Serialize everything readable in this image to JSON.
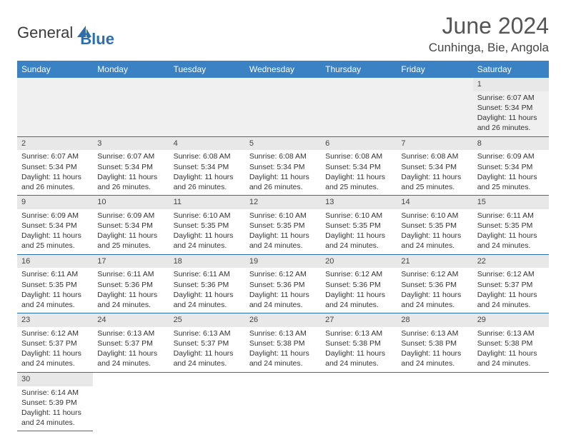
{
  "logo": {
    "text1": "General",
    "text2": "Blue"
  },
  "title": "June 2024",
  "location": "Cunhinga, Bie, Angola",
  "colors": {
    "header_bg": "#3b82c4",
    "border": "#2b6fb0",
    "daynum_bg": "#e8e8e8"
  },
  "weekdays": [
    "Sunday",
    "Monday",
    "Tuesday",
    "Wednesday",
    "Thursday",
    "Friday",
    "Saturday"
  ],
  "cells": [
    [
      null,
      null,
      null,
      null,
      null,
      null,
      {
        "day": "1",
        "sunrise": "Sunrise: 6:07 AM",
        "sunset": "Sunset: 5:34 PM",
        "daylight1": "Daylight: 11 hours",
        "daylight2": "and 26 minutes."
      }
    ],
    [
      {
        "day": "2",
        "sunrise": "Sunrise: 6:07 AM",
        "sunset": "Sunset: 5:34 PM",
        "daylight1": "Daylight: 11 hours",
        "daylight2": "and 26 minutes."
      },
      {
        "day": "3",
        "sunrise": "Sunrise: 6:07 AM",
        "sunset": "Sunset: 5:34 PM",
        "daylight1": "Daylight: 11 hours",
        "daylight2": "and 26 minutes."
      },
      {
        "day": "4",
        "sunrise": "Sunrise: 6:08 AM",
        "sunset": "Sunset: 5:34 PM",
        "daylight1": "Daylight: 11 hours",
        "daylight2": "and 26 minutes."
      },
      {
        "day": "5",
        "sunrise": "Sunrise: 6:08 AM",
        "sunset": "Sunset: 5:34 PM",
        "daylight1": "Daylight: 11 hours",
        "daylight2": "and 26 minutes."
      },
      {
        "day": "6",
        "sunrise": "Sunrise: 6:08 AM",
        "sunset": "Sunset: 5:34 PM",
        "daylight1": "Daylight: 11 hours",
        "daylight2": "and 25 minutes."
      },
      {
        "day": "7",
        "sunrise": "Sunrise: 6:08 AM",
        "sunset": "Sunset: 5:34 PM",
        "daylight1": "Daylight: 11 hours",
        "daylight2": "and 25 minutes."
      },
      {
        "day": "8",
        "sunrise": "Sunrise: 6:09 AM",
        "sunset": "Sunset: 5:34 PM",
        "daylight1": "Daylight: 11 hours",
        "daylight2": "and 25 minutes."
      }
    ],
    [
      {
        "day": "9",
        "sunrise": "Sunrise: 6:09 AM",
        "sunset": "Sunset: 5:34 PM",
        "daylight1": "Daylight: 11 hours",
        "daylight2": "and 25 minutes."
      },
      {
        "day": "10",
        "sunrise": "Sunrise: 6:09 AM",
        "sunset": "Sunset: 5:34 PM",
        "daylight1": "Daylight: 11 hours",
        "daylight2": "and 25 minutes."
      },
      {
        "day": "11",
        "sunrise": "Sunrise: 6:10 AM",
        "sunset": "Sunset: 5:35 PM",
        "daylight1": "Daylight: 11 hours",
        "daylight2": "and 24 minutes."
      },
      {
        "day": "12",
        "sunrise": "Sunrise: 6:10 AM",
        "sunset": "Sunset: 5:35 PM",
        "daylight1": "Daylight: 11 hours",
        "daylight2": "and 24 minutes."
      },
      {
        "day": "13",
        "sunrise": "Sunrise: 6:10 AM",
        "sunset": "Sunset: 5:35 PM",
        "daylight1": "Daylight: 11 hours",
        "daylight2": "and 24 minutes."
      },
      {
        "day": "14",
        "sunrise": "Sunrise: 6:10 AM",
        "sunset": "Sunset: 5:35 PM",
        "daylight1": "Daylight: 11 hours",
        "daylight2": "and 24 minutes."
      },
      {
        "day": "15",
        "sunrise": "Sunrise: 6:11 AM",
        "sunset": "Sunset: 5:35 PM",
        "daylight1": "Daylight: 11 hours",
        "daylight2": "and 24 minutes."
      }
    ],
    [
      {
        "day": "16",
        "sunrise": "Sunrise: 6:11 AM",
        "sunset": "Sunset: 5:35 PM",
        "daylight1": "Daylight: 11 hours",
        "daylight2": "and 24 minutes."
      },
      {
        "day": "17",
        "sunrise": "Sunrise: 6:11 AM",
        "sunset": "Sunset: 5:36 PM",
        "daylight1": "Daylight: 11 hours",
        "daylight2": "and 24 minutes."
      },
      {
        "day": "18",
        "sunrise": "Sunrise: 6:11 AM",
        "sunset": "Sunset: 5:36 PM",
        "daylight1": "Daylight: 11 hours",
        "daylight2": "and 24 minutes."
      },
      {
        "day": "19",
        "sunrise": "Sunrise: 6:12 AM",
        "sunset": "Sunset: 5:36 PM",
        "daylight1": "Daylight: 11 hours",
        "daylight2": "and 24 minutes."
      },
      {
        "day": "20",
        "sunrise": "Sunrise: 6:12 AM",
        "sunset": "Sunset: 5:36 PM",
        "daylight1": "Daylight: 11 hours",
        "daylight2": "and 24 minutes."
      },
      {
        "day": "21",
        "sunrise": "Sunrise: 6:12 AM",
        "sunset": "Sunset: 5:36 PM",
        "daylight1": "Daylight: 11 hours",
        "daylight2": "and 24 minutes."
      },
      {
        "day": "22",
        "sunrise": "Sunrise: 6:12 AM",
        "sunset": "Sunset: 5:37 PM",
        "daylight1": "Daylight: 11 hours",
        "daylight2": "and 24 minutes."
      }
    ],
    [
      {
        "day": "23",
        "sunrise": "Sunrise: 6:12 AM",
        "sunset": "Sunset: 5:37 PM",
        "daylight1": "Daylight: 11 hours",
        "daylight2": "and 24 minutes."
      },
      {
        "day": "24",
        "sunrise": "Sunrise: 6:13 AM",
        "sunset": "Sunset: 5:37 PM",
        "daylight1": "Daylight: 11 hours",
        "daylight2": "and 24 minutes."
      },
      {
        "day": "25",
        "sunrise": "Sunrise: 6:13 AM",
        "sunset": "Sunset: 5:37 PM",
        "daylight1": "Daylight: 11 hours",
        "daylight2": "and 24 minutes."
      },
      {
        "day": "26",
        "sunrise": "Sunrise: 6:13 AM",
        "sunset": "Sunset: 5:38 PM",
        "daylight1": "Daylight: 11 hours",
        "daylight2": "and 24 minutes."
      },
      {
        "day": "27",
        "sunrise": "Sunrise: 6:13 AM",
        "sunset": "Sunset: 5:38 PM",
        "daylight1": "Daylight: 11 hours",
        "daylight2": "and 24 minutes."
      },
      {
        "day": "28",
        "sunrise": "Sunrise: 6:13 AM",
        "sunset": "Sunset: 5:38 PM",
        "daylight1": "Daylight: 11 hours",
        "daylight2": "and 24 minutes."
      },
      {
        "day": "29",
        "sunrise": "Sunrise: 6:13 AM",
        "sunset": "Sunset: 5:38 PM",
        "daylight1": "Daylight: 11 hours",
        "daylight2": "and 24 minutes."
      }
    ],
    [
      {
        "day": "30",
        "sunrise": "Sunrise: 6:14 AM",
        "sunset": "Sunset: 5:39 PM",
        "daylight1": "Daylight: 11 hours",
        "daylight2": "and 24 minutes."
      },
      null,
      null,
      null,
      null,
      null,
      null
    ]
  ]
}
